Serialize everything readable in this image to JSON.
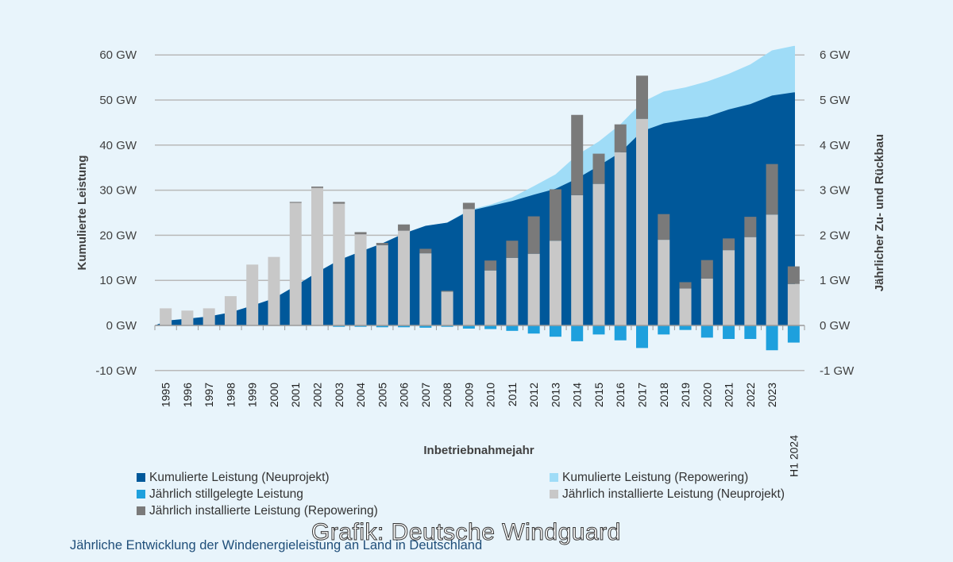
{
  "chart_data": {
    "type": "bar",
    "x": [
      "1995",
      "1996",
      "1997",
      "1998",
      "1999",
      "2000",
      "2001",
      "2002",
      "2003",
      "2004",
      "2005",
      "2006",
      "2007",
      "2008",
      "2009",
      "2010",
      "2011",
      "2012",
      "2013",
      "2014",
      "2015",
      "2016",
      "2017",
      "2018",
      "2019",
      "2020",
      "2021",
      "2022",
      "2023",
      "H1 2024"
    ],
    "left_axis": {
      "label": "Kumulierte Leistung",
      "ylim": [
        -10,
        60
      ],
      "ticks": [
        -10,
        0,
        10,
        20,
        30,
        40,
        50,
        60
      ],
      "tick_labels": [
        "-10 GW",
        "0 GW",
        "10 GW",
        "20 GW",
        "30 GW",
        "40 GW",
        "50 GW",
        "60 GW"
      ]
    },
    "right_axis": {
      "label": "Jährlicher Zu- und Rückbau",
      "ylim": [
        -1,
        6
      ],
      "ticks": [
        -1,
        0,
        1,
        2,
        3,
        4,
        5,
        6
      ],
      "tick_labels": [
        "-1 GW",
        "0 GW",
        "1 GW",
        "2 GW",
        "3 GW",
        "4 GW",
        "5 GW",
        "6 GW"
      ]
    },
    "xlabel": "Inbetriebnahmejahr",
    "grid": true,
    "legend_position": "bottom",
    "series": [
      {
        "name": "Kumulierte Leistung (Neuprojekt)",
        "type": "area",
        "axis": "left",
        "color": "#00589a",
        "values": [
          1.1,
          1.5,
          2.0,
          2.9,
          4.4,
          6.0,
          8.8,
          11.8,
          14.5,
          16.4,
          18.2,
          20.4,
          22.1,
          22.8,
          25.4,
          26.5,
          27.6,
          29.0,
          30.3,
          32.6,
          35.4,
          38.4,
          43.1,
          44.8,
          45.6,
          46.3,
          47.9,
          49.1,
          51.0,
          51.7
        ]
      },
      {
        "name": "Kumulierte Leistung (Repowering)",
        "type": "area",
        "axis": "left",
        "color": "#9fdcf7",
        "values": [
          1.1,
          1.5,
          2.0,
          2.9,
          4.4,
          6.0,
          8.8,
          11.8,
          14.5,
          16.4,
          18.2,
          20.4,
          22.1,
          22.8,
          25.6,
          26.8,
          28.4,
          30.9,
          33.5,
          37.8,
          40.8,
          44.6,
          49.5,
          51.9,
          52.8,
          54.1,
          55.8,
          57.9,
          61.0,
          62.0
        ]
      },
      {
        "name": "Jährlich installierte Leistung (Neuprojekt)",
        "type": "bar",
        "axis": "right",
        "color": "#c8c8c8",
        "values": [
          0.38,
          0.33,
          0.38,
          0.65,
          1.35,
          1.52,
          2.72,
          3.05,
          2.7,
          2.02,
          1.78,
          2.1,
          1.6,
          0.75,
          2.58,
          1.22,
          1.5,
          1.59,
          1.88,
          2.89,
          3.14,
          3.84,
          4.58,
          1.9,
          0.82,
          1.04,
          1.67,
          1.96,
          2.46,
          0.92
        ]
      },
      {
        "name": "Jährlich installierte Leistung (Repowering)",
        "type": "bar",
        "axis": "right",
        "color": "#7a7a7a",
        "values": [
          0,
          0,
          0,
          0,
          0,
          0,
          0.02,
          0.03,
          0.04,
          0.05,
          0.05,
          0.14,
          0.1,
          0.02,
          0.14,
          0.22,
          0.38,
          0.83,
          1.14,
          1.78,
          0.67,
          0.62,
          0.96,
          0.57,
          0.14,
          0.41,
          0.26,
          0.45,
          1.12,
          0.39
        ]
      },
      {
        "name": "Jährlich stillgelegte Leistung",
        "type": "bar",
        "axis": "right",
        "color": "#1ea0dd",
        "values": [
          0,
          0,
          0,
          0,
          0,
          0,
          0,
          0,
          -0.03,
          -0.03,
          -0.04,
          -0.04,
          -0.05,
          -0.03,
          -0.07,
          -0.08,
          -0.12,
          -0.18,
          -0.25,
          -0.35,
          -0.2,
          -0.33,
          -0.5,
          -0.2,
          -0.1,
          -0.27,
          -0.3,
          -0.3,
          -0.55,
          -0.38
        ]
      }
    ]
  },
  "caption": "Jährliche Entwicklung der Windenergieleistung an Land in Deutschland",
  "watermark": "Grafik: Deutsche Windguard"
}
